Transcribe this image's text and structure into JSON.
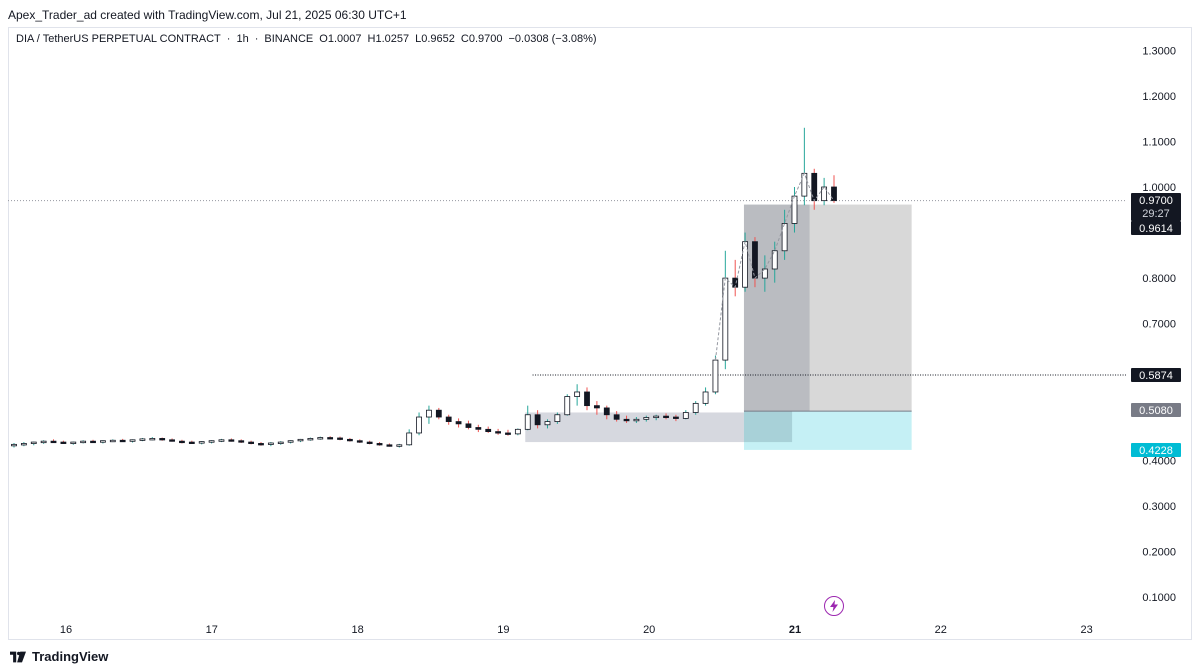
{
  "header": {
    "credit": "Apex_Trader_ad created with TradingView.com, Jul 21, 2025 06:30 UTC+1",
    "symbol": "DIA / TetherUS PERPETUAL CONTRACT",
    "interval": "1h",
    "exchange": "BINANCE",
    "open_label": "O",
    "open": "1.0007",
    "high_label": "H",
    "high": "1.0257",
    "low_label": "L",
    "low": "0.9652",
    "close_label": "C",
    "close": "0.9700",
    "change": "−0.0308 (−3.08%)"
  },
  "footer": {
    "brand": "TradingView"
  },
  "colors": {
    "up_wick": "#26a69a",
    "down_wick": "#ef5350",
    "candle_body": "#ffffff",
    "candle_border": "#131722",
    "zone_grey": "#d1d4dc",
    "zone_dark": "#a3a6af",
    "zone_cyan": "#b2ebf2",
    "price_tag_dark": "#131722",
    "price_tag_grey": "#787b86",
    "price_tag_cyan": "#00bcd4"
  },
  "chart_data": {
    "type": "candlestick",
    "x_ticks": [
      "16",
      "17",
      "18",
      "19",
      "20",
      "21",
      "22",
      "23"
    ],
    "y_ticks": [
      "1.3000",
      "1.2000",
      "1.1000",
      "1.0000",
      "0.8000",
      "0.7000",
      "0.3000",
      "0.2000",
      "0.1000"
    ],
    "ylim": [
      0.05,
      1.35
    ],
    "price_tags": [
      {
        "value": "0.9700",
        "sub": "29:27",
        "style": "dark"
      },
      {
        "value": "0.9614",
        "style": "dark"
      },
      {
        "value": "0.5874",
        "style": "dark"
      },
      {
        "value": "0.5080",
        "style": "grey"
      },
      {
        "value": "0.4228",
        "style": "cyan"
      }
    ],
    "hidden_partial_ticks": [
      "0.4000"
    ],
    "levels": [
      {
        "name": "current-price-line",
        "value": 0.97,
        "from_day": 15.6,
        "to_day": 23.3
      },
      {
        "name": "resistance-line",
        "value": 0.5874,
        "from_day": 19.2,
        "to_day": 23.3
      }
    ],
    "zones": [
      {
        "name": "accumulation-range",
        "x_from": 19.15,
        "x_to": 20.65,
        "y_from": 0.44,
        "y_to": 0.505
      },
      {
        "name": "long-profit-zone",
        "x_from": 20.65,
        "x_to": 21.8,
        "y_from": 0.508,
        "y_to": 0.9614
      },
      {
        "name": "long-entry-shade",
        "x_from": 20.65,
        "x_to": 21.1,
        "y_from": 0.508,
        "y_to": 0.9614
      },
      {
        "name": "long-stop-zone",
        "x_from": 20.65,
        "x_to": 21.8,
        "y_from": 0.4228,
        "y_to": 0.508
      },
      {
        "name": "entry-overlap",
        "x_from": 20.65,
        "x_to": 20.98,
        "y_from": 0.44,
        "y_to": 0.508
      }
    ],
    "x_day_start": 15.6,
    "x_day_end": 23.6,
    "candles": [
      [
        0.432,
        0.438,
        0.428,
        0.435
      ],
      [
        0.435,
        0.44,
        0.431,
        0.437
      ],
      [
        0.437,
        0.441,
        0.433,
        0.44
      ],
      [
        0.44,
        0.444,
        0.436,
        0.442
      ],
      [
        0.442,
        0.446,
        0.438,
        0.44
      ],
      [
        0.44,
        0.443,
        0.436,
        0.438
      ],
      [
        0.438,
        0.441,
        0.434,
        0.44
      ],
      [
        0.44,
        0.444,
        0.437,
        0.442
      ],
      [
        0.442,
        0.445,
        0.438,
        0.441
      ],
      [
        0.441,
        0.444,
        0.437,
        0.443
      ],
      [
        0.443,
        0.446,
        0.44,
        0.444
      ],
      [
        0.444,
        0.447,
        0.441,
        0.442
      ],
      [
        0.442,
        0.446,
        0.439,
        0.445
      ],
      [
        0.445,
        0.449,
        0.442,
        0.447
      ],
      [
        0.447,
        0.451,
        0.444,
        0.448
      ],
      [
        0.448,
        0.45,
        0.443,
        0.445
      ],
      [
        0.445,
        0.448,
        0.441,
        0.442
      ],
      [
        0.442,
        0.445,
        0.437,
        0.44
      ],
      [
        0.44,
        0.443,
        0.436,
        0.439
      ],
      [
        0.439,
        0.442,
        0.435,
        0.441
      ],
      [
        0.441,
        0.444,
        0.437,
        0.443
      ],
      [
        0.443,
        0.447,
        0.44,
        0.445
      ],
      [
        0.445,
        0.448,
        0.441,
        0.443
      ],
      [
        0.443,
        0.446,
        0.438,
        0.44
      ],
      [
        0.44,
        0.443,
        0.435,
        0.437
      ],
      [
        0.437,
        0.44,
        0.432,
        0.435
      ],
      [
        0.435,
        0.44,
        0.431,
        0.438
      ],
      [
        0.438,
        0.442,
        0.434,
        0.44
      ],
      [
        0.44,
        0.444,
        0.437,
        0.443
      ],
      [
        0.443,
        0.447,
        0.44,
        0.446
      ],
      [
        0.446,
        0.45,
        0.443,
        0.448
      ],
      [
        0.448,
        0.452,
        0.445,
        0.45
      ],
      [
        0.45,
        0.453,
        0.446,
        0.449
      ],
      [
        0.449,
        0.452,
        0.444,
        0.446
      ],
      [
        0.446,
        0.449,
        0.441,
        0.443
      ],
      [
        0.443,
        0.446,
        0.438,
        0.44
      ],
      [
        0.44,
        0.443,
        0.435,
        0.437
      ],
      [
        0.437,
        0.44,
        0.432,
        0.434
      ],
      [
        0.434,
        0.437,
        0.43,
        0.432
      ],
      [
        0.432,
        0.436,
        0.428,
        0.434
      ],
      [
        0.434,
        0.468,
        0.432,
        0.46
      ],
      [
        0.46,
        0.505,
        0.455,
        0.495
      ],
      [
        0.495,
        0.52,
        0.48,
        0.51
      ],
      [
        0.51,
        0.515,
        0.49,
        0.495
      ],
      [
        0.495,
        0.5,
        0.478,
        0.485
      ],
      [
        0.485,
        0.492,
        0.472,
        0.48
      ],
      [
        0.48,
        0.487,
        0.468,
        0.472
      ],
      [
        0.472,
        0.478,
        0.462,
        0.468
      ],
      [
        0.468,
        0.474,
        0.46,
        0.463
      ],
      [
        0.463,
        0.469,
        0.456,
        0.46
      ],
      [
        0.46,
        0.467,
        0.454,
        0.458
      ],
      [
        0.458,
        0.47,
        0.455,
        0.468
      ],
      [
        0.468,
        0.52,
        0.466,
        0.5
      ],
      [
        0.5,
        0.51,
        0.47,
        0.478
      ],
      [
        0.478,
        0.49,
        0.47,
        0.485
      ],
      [
        0.485,
        0.505,
        0.48,
        0.5
      ],
      [
        0.5,
        0.545,
        0.498,
        0.54
      ],
      [
        0.54,
        0.567,
        0.52,
        0.55
      ],
      [
        0.55,
        0.56,
        0.51,
        0.52
      ],
      [
        0.52,
        0.53,
        0.5,
        0.515
      ],
      [
        0.515,
        0.52,
        0.49,
        0.5
      ],
      [
        0.5,
        0.508,
        0.485,
        0.49
      ],
      [
        0.49,
        0.498,
        0.482,
        0.488
      ],
      [
        0.488,
        0.495,
        0.482,
        0.49
      ],
      [
        0.49,
        0.498,
        0.485,
        0.494
      ],
      [
        0.494,
        0.5,
        0.488,
        0.497
      ],
      [
        0.497,
        0.503,
        0.49,
        0.495
      ],
      [
        0.495,
        0.5,
        0.486,
        0.492
      ],
      [
        0.492,
        0.51,
        0.49,
        0.505
      ],
      [
        0.505,
        0.53,
        0.5,
        0.525
      ],
      [
        0.525,
        0.56,
        0.52,
        0.55
      ],
      [
        0.55,
        0.63,
        0.545,
        0.62
      ],
      [
        0.62,
        0.86,
        0.6,
        0.8
      ],
      [
        0.8,
        0.84,
        0.76,
        0.78
      ],
      [
        0.78,
        0.9,
        0.77,
        0.88
      ],
      [
        0.88,
        0.89,
        0.78,
        0.8
      ],
      [
        0.8,
        0.85,
        0.77,
        0.82
      ],
      [
        0.82,
        0.88,
        0.79,
        0.86
      ],
      [
        0.86,
        0.95,
        0.84,
        0.92
      ],
      [
        0.92,
        1.0,
        0.9,
        0.98
      ],
      [
        0.98,
        1.13,
        0.96,
        1.03
      ],
      [
        1.03,
        1.04,
        0.95,
        0.97
      ],
      [
        0.97,
        1.02,
        0.96,
        1.0
      ],
      [
        1.0,
        1.0257,
        0.9652,
        0.97
      ]
    ]
  }
}
